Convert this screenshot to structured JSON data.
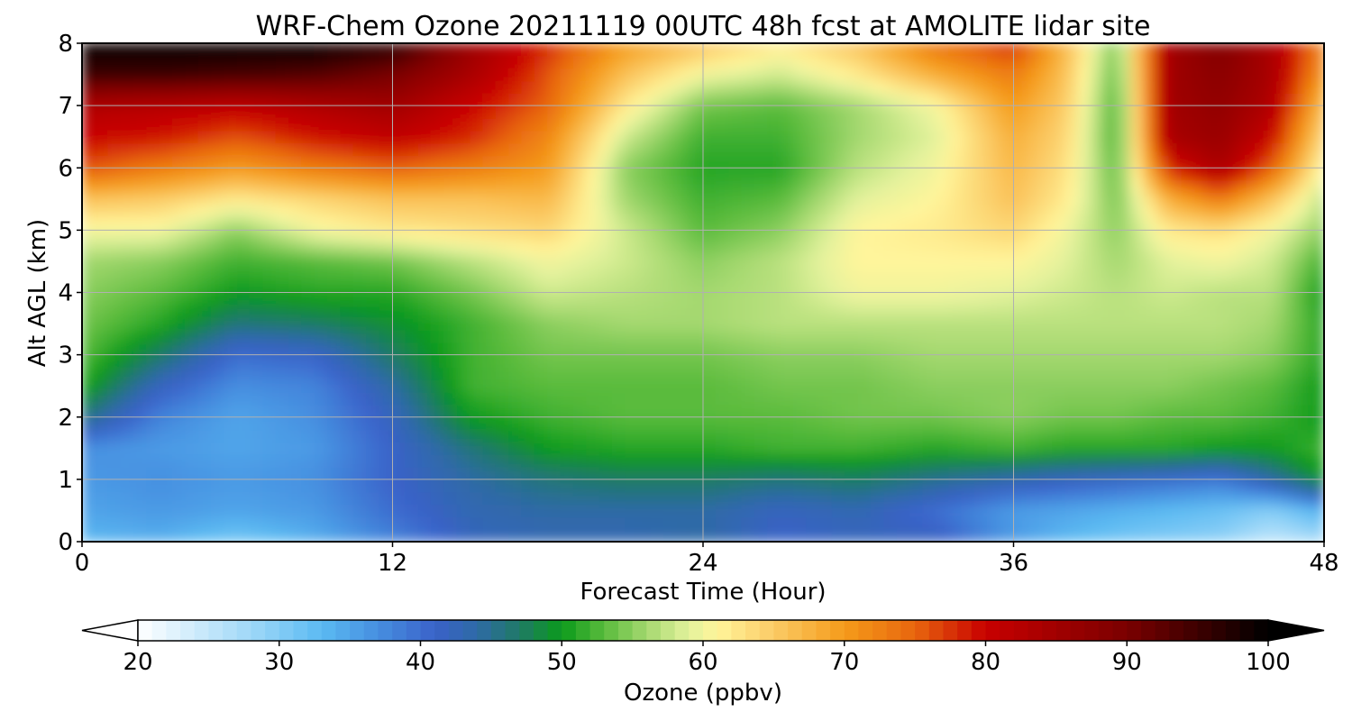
{
  "chart_data": {
    "type": "heatmap",
    "title": "WRF-Chem Ozone  20211119 00UTC 48h fcst at AMOLITE lidar site",
    "xlabel": "Forecast Time (Hour)",
    "ylabel": "Alt AGL (km)",
    "xlim": [
      0,
      48
    ],
    "ylim": [
      0,
      8
    ],
    "xticks": [
      "0",
      "12",
      "24",
      "36",
      "48"
    ],
    "yticks": [
      "0",
      "1",
      "2",
      "3",
      "4",
      "5",
      "6",
      "7",
      "8"
    ],
    "grid": true,
    "x": [
      0,
      3,
      6,
      9,
      12,
      15,
      18,
      21,
      24,
      27,
      30,
      33,
      36,
      38,
      40,
      42,
      44,
      46,
      48
    ],
    "y": [
      0,
      0.5,
      1,
      1.5,
      2,
      2.5,
      3,
      3.5,
      4,
      4.5,
      5,
      5.5,
      6,
      6.5,
      7,
      7.5,
      8
    ],
    "z": [
      [
        33,
        34,
        31,
        34,
        38,
        42,
        43,
        43,
        44,
        41,
        42,
        42,
        36,
        33,
        31,
        30,
        29,
        25,
        27
      ],
      [
        35,
        36,
        35,
        36,
        40,
        43,
        44,
        44,
        44,
        42,
        43,
        40,
        36,
        35,
        34,
        33,
        32,
        30,
        34
      ],
      [
        36,
        37,
        36,
        37,
        41,
        44,
        46,
        47,
        47,
        46,
        47,
        45,
        43,
        42,
        41,
        40,
        39,
        44,
        50
      ],
      [
        37,
        36,
        35,
        36,
        41,
        46,
        50,
        51,
        51,
        52,
        52,
        51,
        52,
        51,
        51,
        51,
        50,
        50,
        52
      ],
      [
        46,
        38,
        35,
        37,
        42,
        50,
        52,
        53,
        53,
        53,
        54,
        54,
        55,
        54,
        54,
        53,
        53,
        52,
        50
      ],
      [
        51,
        42,
        37,
        38,
        44,
        52,
        53,
        53,
        53,
        54,
        54,
        55,
        55,
        55,
        55,
        55,
        54,
        53,
        50
      ],
      [
        53,
        47,
        40,
        41,
        47,
        52,
        54,
        54,
        54,
        55,
        55,
        56,
        56,
        56,
        56,
        56,
        56,
        55,
        51
      ],
      [
        54,
        51,
        46,
        47,
        49,
        52,
        55,
        56,
        56,
        57,
        57,
        57,
        57,
        57,
        57,
        57,
        57,
        56,
        51
      ],
      [
        55,
        53,
        50,
        51,
        51,
        54,
        58,
        57,
        56,
        57,
        60,
        60,
        59,
        58,
        57,
        58,
        57,
        57,
        50
      ],
      [
        56,
        55,
        52,
        53,
        54,
        57,
        60,
        58,
        55,
        57,
        61,
        61,
        61,
        59,
        56,
        59,
        60,
        58,
        52
      ],
      [
        60,
        60,
        55,
        60,
        62,
        63,
        64,
        58,
        53,
        55,
        61,
        62,
        64,
        60,
        55,
        62,
        63,
        60,
        55
      ],
      [
        66,
        65,
        62,
        64,
        66,
        66,
        67,
        56,
        52,
        53,
        59,
        61,
        66,
        62,
        54,
        68,
        73,
        66,
        57
      ],
      [
        76,
        73,
        70,
        73,
        75,
        73,
        70,
        55,
        51,
        51,
        57,
        60,
        67,
        63,
        53,
        78,
        84,
        75,
        60
      ],
      [
        80,
        79,
        76,
        79,
        81,
        78,
        72,
        58,
        52,
        52,
        56,
        59,
        68,
        64,
        52,
        84,
        86,
        80,
        63
      ],
      [
        83,
        82,
        81,
        83,
        85,
        80,
        75,
        62,
        54,
        53,
        56,
        60,
        70,
        65,
        52,
        85,
        87,
        83,
        66
      ],
      [
        95,
        95,
        94,
        93,
        90,
        84,
        76,
        66,
        60,
        58,
        62,
        68,
        73,
        66,
        53,
        85,
        88,
        84,
        70
      ],
      [
        100,
        100,
        100,
        100,
        97,
        86,
        78,
        70,
        66,
        62,
        66,
        74,
        78,
        67,
        54,
        85,
        89,
        84,
        72
      ]
    ],
    "colorbar": {
      "label": "Ozone  (ppbv)",
      "ticks": [
        "20",
        "30",
        "40",
        "50",
        "60",
        "70",
        "80",
        "90",
        "100"
      ],
      "range": [
        20,
        100
      ],
      "extend": "both",
      "colors": [
        {
          "v": 20,
          "c": "#ffffff"
        },
        {
          "v": 28,
          "c": "#9fd8f8"
        },
        {
          "v": 33,
          "c": "#5bbaf2"
        },
        {
          "v": 37,
          "c": "#468fe0"
        },
        {
          "v": 41,
          "c": "#3a62c9"
        },
        {
          "v": 44,
          "c": "#2e6aa6"
        },
        {
          "v": 47,
          "c": "#1f7a66"
        },
        {
          "v": 50,
          "c": "#0b9a1b"
        },
        {
          "v": 53,
          "c": "#5abb3c"
        },
        {
          "v": 56,
          "c": "#a4d86f"
        },
        {
          "v": 59,
          "c": "#e3f29c"
        },
        {
          "v": 61,
          "c": "#fff59b"
        },
        {
          "v": 65,
          "c": "#fbcb66"
        },
        {
          "v": 70,
          "c": "#f59b1a"
        },
        {
          "v": 75,
          "c": "#e8660e"
        },
        {
          "v": 80,
          "c": "#c80000"
        },
        {
          "v": 90,
          "c": "#7a0000"
        },
        {
          "v": 100,
          "c": "#000000"
        }
      ]
    }
  }
}
